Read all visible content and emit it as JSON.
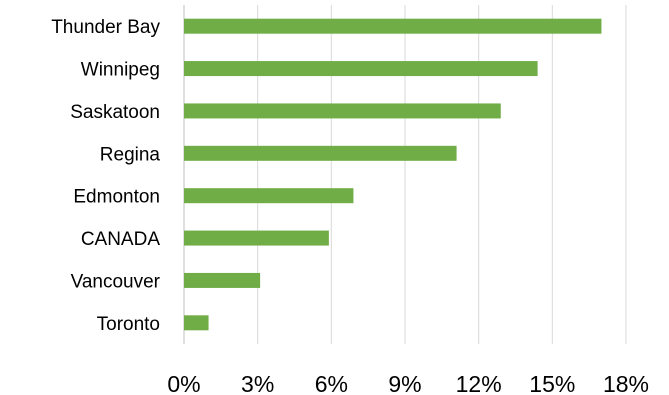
{
  "chart_data": {
    "type": "bar",
    "orientation": "horizontal",
    "categories": [
      "Thunder Bay",
      "Winnipeg",
      "Saskatoon",
      "Regina",
      "Edmonton",
      "CANADA",
      "Vancouver",
      "Toronto"
    ],
    "values": [
      17.0,
      14.4,
      12.9,
      11.1,
      6.9,
      5.9,
      3.1,
      1.0
    ],
    "x_ticks": [
      "0%",
      "3%",
      "6%",
      "9%",
      "12%",
      "15%",
      "18%"
    ],
    "xlim": [
      0,
      18
    ],
    "title": "",
    "xlabel": "",
    "ylabel": "",
    "grid": "vertical",
    "legend": "none",
    "bar_color": "#70ad47"
  }
}
